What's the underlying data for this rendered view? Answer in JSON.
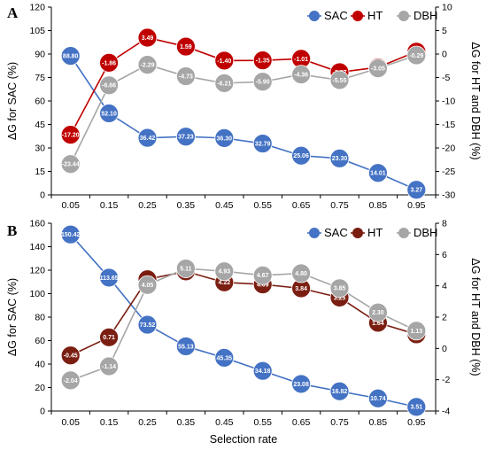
{
  "x_axis_title": "Selection rate",
  "chart_data": [
    {
      "type": "line",
      "panel": "A",
      "x": [
        "0.05",
        "0.15",
        "0.25",
        "0.35",
        "0.45",
        "0.55",
        "0.65",
        "0.75",
        "0.85",
        "0.95"
      ],
      "ylabel": "ΔG for SAC (%)",
      "ylim": [
        0,
        120
      ],
      "yticks": [
        0,
        15,
        30,
        45,
        60,
        75,
        90,
        105,
        120
      ],
      "y2label": "ΔG for HT and DBH (%)",
      "y2lim": [
        -30,
        10
      ],
      "y2ticks": [
        -30,
        -25,
        -20,
        -15,
        -10,
        -5,
        0,
        5,
        10
      ],
      "legend_position": "top-right",
      "grid": false,
      "series": [
        {
          "name": "SAC",
          "axis": "left",
          "color": "#4472C4",
          "values": [
            88.8,
            52.1,
            36.42,
            37.23,
            36.3,
            32.79,
            25.06,
            23.3,
            14.01,
            3.27
          ],
          "labels": [
            "88.80",
            "52.10",
            "36.42",
            "37.23",
            "36.30",
            "32.79",
            "25.06",
            "23.30",
            "14.01",
            "3.27"
          ]
        },
        {
          "name": "HT",
          "axis": "right",
          "color": "#C00000",
          "values": [
            -17.2,
            -1.86,
            3.49,
            1.59,
            -1.4,
            -1.35,
            -1.01,
            -3.87,
            -2.82,
            0.51
          ],
          "labels": [
            "-17.20",
            "-1.86",
            "3.49",
            "1.59",
            "-1.40",
            "-1.35",
            "-1.01",
            "-3.87",
            "-2.82",
            "0.51"
          ]
        },
        {
          "name": "DBH",
          "axis": "right",
          "color": "#A6A6A6",
          "values": [
            -23.44,
            -6.66,
            -2.29,
            -4.73,
            -6.21,
            -5.9,
            -4.36,
            -5.55,
            -3.05,
            -0.29
          ],
          "labels": [
            "-23.44",
            "-6.66",
            "-2.29",
            "-4.73",
            "-6.21",
            "-5.90",
            "-4.36",
            "-5.55",
            "-3.05",
            "-0.29"
          ]
        }
      ]
    },
    {
      "type": "line",
      "panel": "B",
      "x": [
        "0.05",
        "0.15",
        "0.25",
        "0.35",
        "0.45",
        "0.55",
        "0.65",
        "0.75",
        "0.85",
        "0.95"
      ],
      "ylabel": "ΔG for SAC (%)",
      "ylim": [
        0,
        160
      ],
      "yticks": [
        0,
        20,
        40,
        60,
        80,
        100,
        120,
        140,
        160
      ],
      "y2label": "ΔG for HT and DBH (%)",
      "y2lim": [
        -4,
        8
      ],
      "y2ticks": [
        -4,
        -2,
        0,
        2,
        4,
        6,
        8
      ],
      "xlabel": "Selection rate",
      "legend_position": "top-right",
      "grid": false,
      "series": [
        {
          "name": "SAC",
          "axis": "left",
          "color": "#4472C4",
          "values": [
            150.42,
            113.65,
            73.52,
            55.13,
            45.35,
            34.18,
            23.08,
            16.82,
            10.74,
            3.51
          ],
          "labels": [
            "150.42",
            "113.65",
            "73.52",
            "55.13",
            "45.35",
            "34.18",
            "23.08",
            "16.82",
            "10.74",
            "3.51"
          ]
        },
        {
          "name": "HT",
          "axis": "right",
          "color": "#7B1E12",
          "values": [
            -0.45,
            0.71,
            4.42,
            4.92,
            4.22,
            4.09,
            3.84,
            3.25,
            1.64,
            0.9
          ],
          "labels": [
            "-0.45",
            "0.71",
            "4.42",
            "4.92",
            "4.22",
            "4.09",
            "3.84",
            "3.25",
            "1.64",
            "0.90"
          ]
        },
        {
          "name": "DBH",
          "axis": "right",
          "color": "#A6A6A6",
          "values": [
            -2.04,
            -1.14,
            4.05,
            5.11,
            4.93,
            4.67,
            4.8,
            3.85,
            2.3,
            1.13
          ],
          "labels": [
            "-2.04",
            "-1.14",
            "4.05",
            "5.11",
            "4.93",
            "4.67",
            "4.80",
            "3.85",
            "2.30",
            "1.13"
          ]
        }
      ]
    }
  ]
}
